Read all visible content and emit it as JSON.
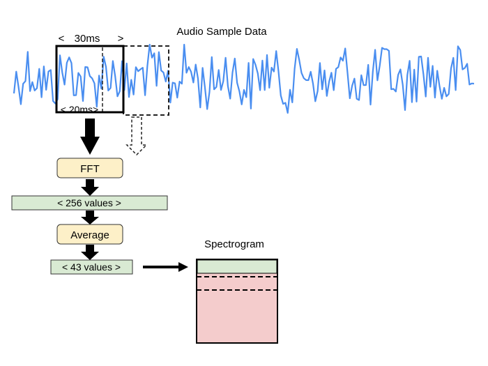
{
  "title": "Audio Sample Data",
  "window": {
    "width_label": "30ms",
    "left_bracket": "<",
    "right_bracket": ">",
    "hop_label": "< 20ms>"
  },
  "steps": {
    "fft": "FFT",
    "fft_output": "< 256 values >",
    "average": "Average",
    "average_output": "< 43 values >"
  },
  "spectrogram": {
    "label": "Spectrogram"
  },
  "colors": {
    "waveform": "#4a8ef0",
    "step_box": "#fdf0c8",
    "output_box": "#d9ead3",
    "spectrogram_body": "#f4cccc"
  }
}
